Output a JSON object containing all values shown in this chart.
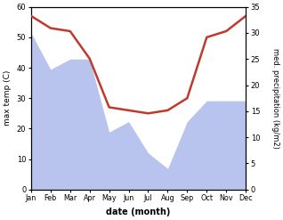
{
  "months": [
    "Jan",
    "Feb",
    "Mar",
    "Apr",
    "May",
    "Jun",
    "Jul",
    "Aug",
    "Sep",
    "Oct",
    "Nov",
    "Dec"
  ],
  "max_temp": [
    57,
    53,
    52,
    43,
    27,
    26,
    25,
    26,
    30,
    50,
    52,
    57
  ],
  "precipitation": [
    30,
    23,
    25,
    25,
    11,
    13,
    7,
    4,
    13,
    17,
    17,
    17
  ],
  "temp_color": "#c0392b",
  "precip_fill_color": "#b8c4ee",
  "temp_ylim": [
    0,
    60
  ],
  "precip_ylim": [
    0,
    35
  ],
  "temp_yticks": [
    0,
    10,
    20,
    30,
    40,
    50,
    60
  ],
  "precip_yticks": [
    0,
    5,
    10,
    15,
    20,
    25,
    30,
    35
  ],
  "xlabel": "date (month)",
  "ylabel_left": "max temp (C)",
  "ylabel_right": "med. precipitation (kg/m2)",
  "background_color": "#ffffff"
}
